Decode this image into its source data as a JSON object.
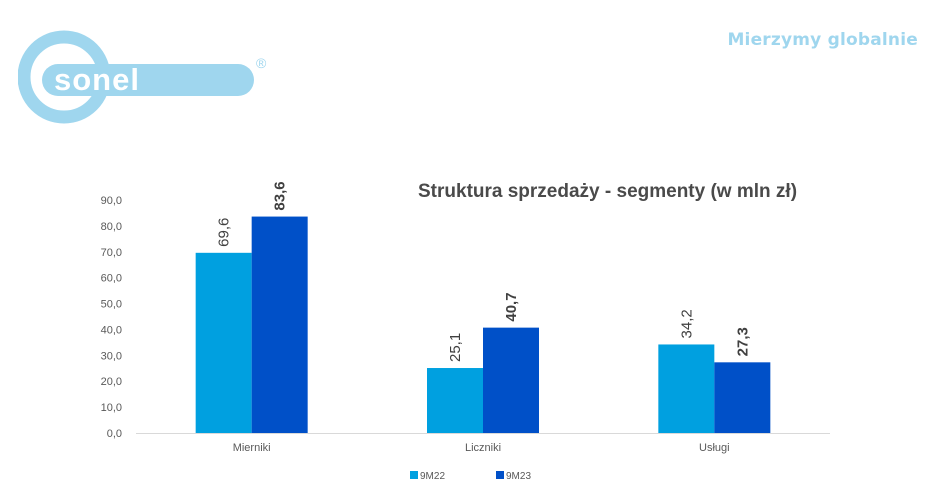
{
  "header": {
    "slogan": "Mierzymy globalnie",
    "logo_text": "sonel",
    "logo_mark": "®"
  },
  "colors": {
    "series_9M22": "#00a0e0",
    "series_9M23": "#0050c8",
    "slogan": "#9fd6ee",
    "logo": "#9fd6ee"
  },
  "chart_data": {
    "type": "bar",
    "title": "Struktura sprzedaży - segmenty (w mln zł)",
    "categories": [
      "Mierniki",
      "Liczniki",
      "Usługi"
    ],
    "series": [
      {
        "name": "9M22",
        "values": [
          69.6,
          25.1,
          34.2
        ],
        "labels": [
          "69,6",
          "25,1",
          "34,2"
        ],
        "color": "#00a0e0"
      },
      {
        "name": "9M23",
        "values": [
          83.6,
          40.7,
          27.3
        ],
        "labels": [
          "83,6",
          "40,7",
          "27,3"
        ],
        "color": "#0050c8"
      }
    ],
    "ylim": [
      0,
      90
    ],
    "yticks": [
      "0,0",
      "10,0",
      "20,0",
      "30,0",
      "40,0",
      "50,0",
      "60,0",
      "70,0",
      "80,0",
      "90,0"
    ],
    "grid": false,
    "legend_position": "bottom"
  }
}
